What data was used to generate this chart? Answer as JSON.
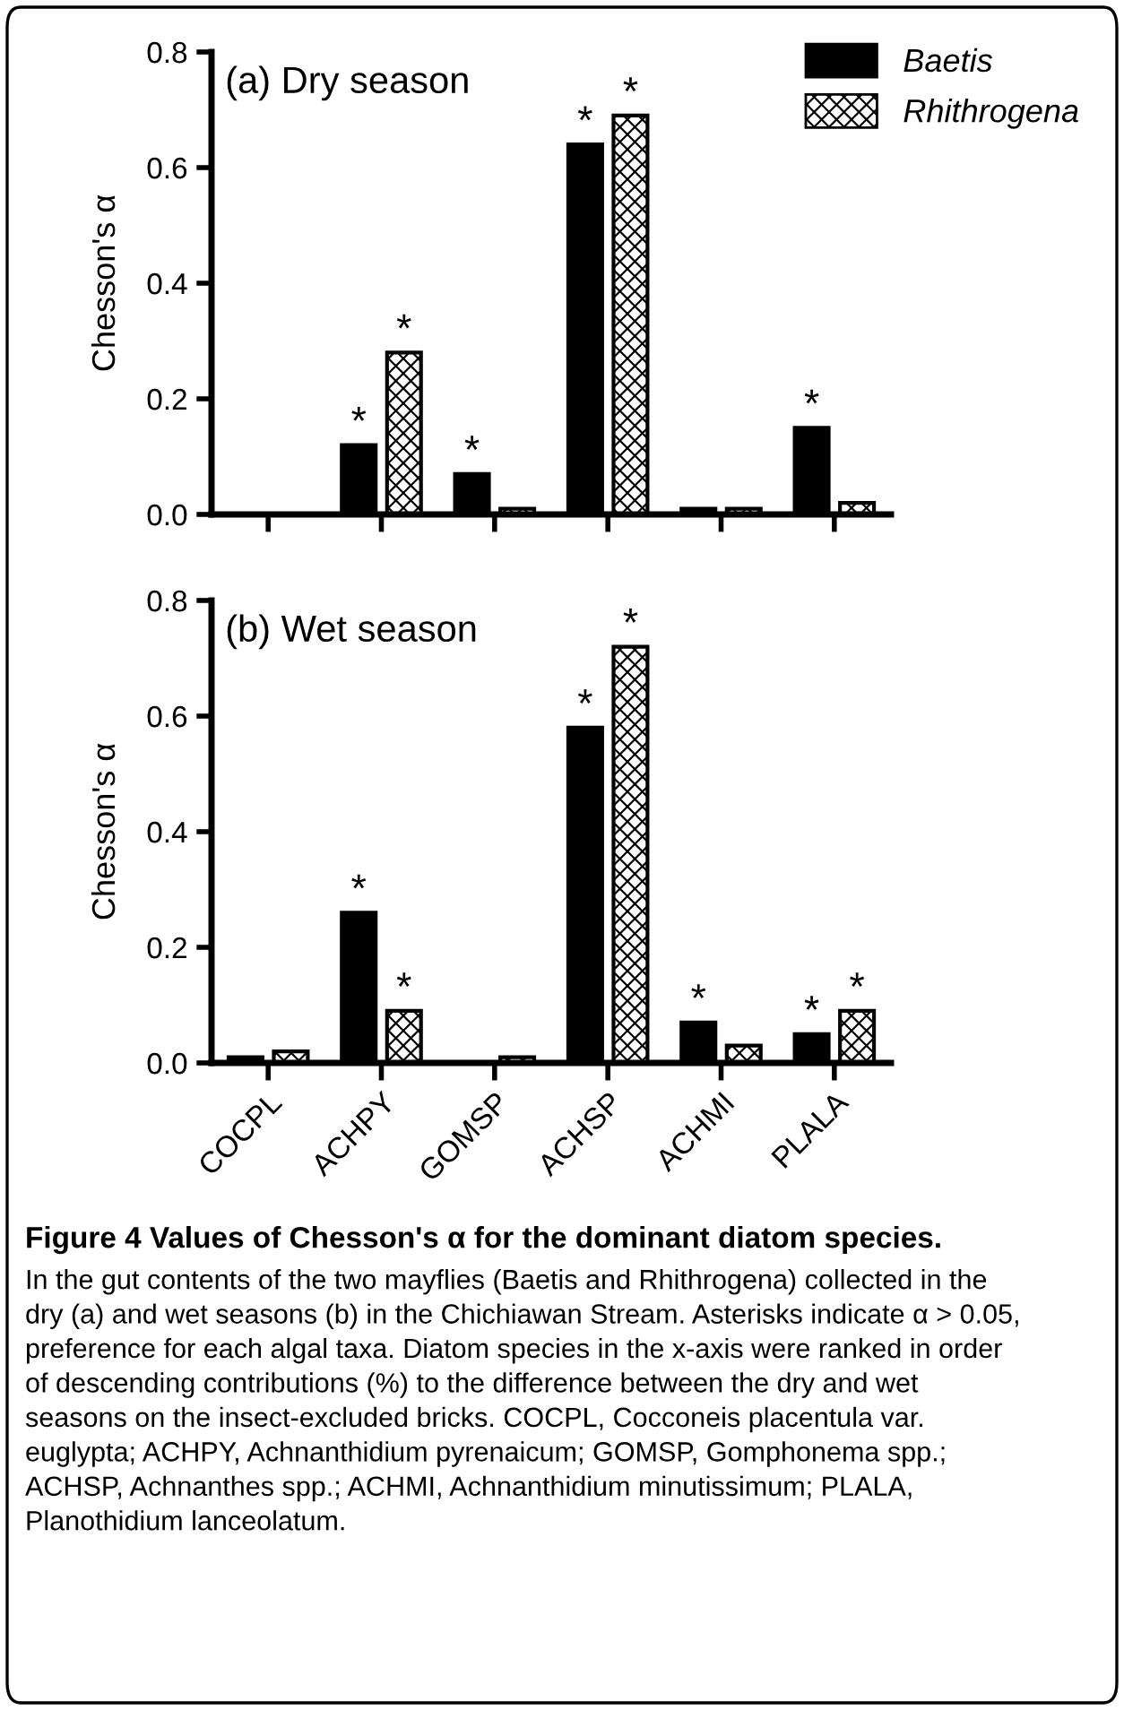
{
  "chart_data": [
    {
      "type": "bar",
      "title": "(a) Dry season",
      "ylabel": "Chesson's α",
      "categories": [
        null,
        null,
        null,
        null,
        null,
        null
      ],
      "ylim": [
        0,
        0.8
      ],
      "yticks": [
        {
          "value": 0,
          "label": "0.0"
        },
        0.2,
        0.4,
        0.6,
        0.8
      ],
      "tick_labels": "y",
      "legend": "top right",
      "grid": false,
      "series": [
        {
          "name": "Baetis",
          "color": "#000000",
          "values": [
            0,
            0.12,
            0.07,
            0.64,
            0.01,
            0.15
          ],
          "value_labels": [
            null,
            "*",
            "*",
            "*",
            null,
            "*"
          ]
        },
        {
          "name": "Rhithrogena",
          "color": "#000000",
          "values": [
            0,
            0.28,
            0.01,
            0.69,
            0.01,
            0.02
          ],
          "value_labels": [
            null,
            "*",
            null,
            "*",
            null,
            null
          ]
        }
      ]
    },
    {
      "type": "bar",
      "title": "(b) Wet season",
      "ylabel": "Chesson's α",
      "categories": [
        "COCPL",
        "ACHPY",
        "GOMSP",
        "ACHSP",
        "ACHMI",
        "PLALA"
      ],
      "ylim": [
        0,
        0.8
      ],
      "yticks": [
        {
          "value": 0,
          "label": "0.0"
        },
        0.2,
        0.4,
        0.6,
        0.8
      ],
      "legend": false,
      "grid": false,
      "series": [
        {
          "color": "#000000",
          "values": [
            0.01,
            0.26,
            0,
            0.58,
            0.07,
            0.05
          ],
          "value_labels": [
            null,
            "*",
            null,
            "*",
            "*",
            "*"
          ]
        },
        {
          "color": "#000000",
          "values": [
            0.02,
            0.09,
            0.01,
            0.72,
            0.03,
            0.09
          ],
          "value_labels": [
            null,
            "*",
            null,
            "*",
            null,
            "*"
          ]
        }
      ],
      "annotations": [
        "Figure 4 Values of Chesson's α for the dominant diatom species.",
        "In the gut contents of the two mayflies (Baetis and Rhithrogena) collected in the dry (a) and wet seasons (b) in the Chichiawan Stream. Asterisks indicate α > 0.05, preference for each algal taxa. Diatom species in the x-axis were ranked in order of descending contributions (%) to the difference between the dry and wet seasons on the insect-excluded bricks. COCPL, Cocconeis placentula var. euglypta; ACHPY, Achnanthidium pyrenaicum; GOMSP, Gomphonema spp.; ACHSP, Achnanthes spp.; ACHMI, Achnanthidium minutissimum; PLALA, Planothidium lanceolatum."
      ]
    }
  ]
}
